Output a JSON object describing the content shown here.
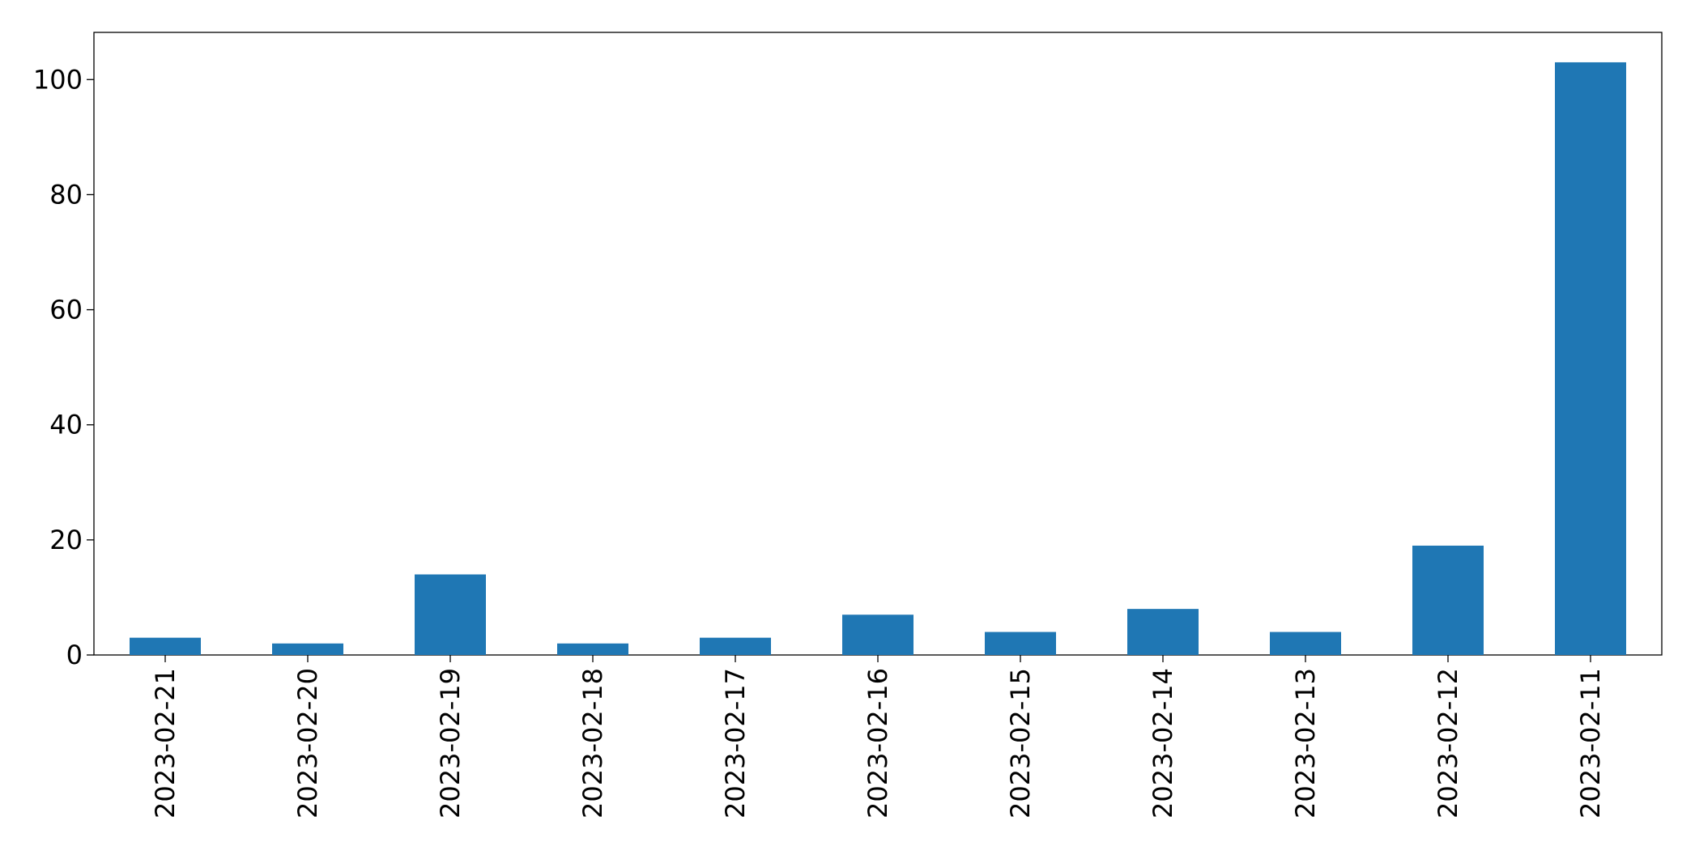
{
  "chart_data": {
    "type": "bar",
    "categories": [
      "2023-02-21",
      "2023-02-20",
      "2023-02-19",
      "2023-02-18",
      "2023-02-17",
      "2023-02-16",
      "2023-02-15",
      "2023-02-14",
      "2023-02-13",
      "2023-02-12",
      "2023-02-11"
    ],
    "values": [
      3,
      2,
      14,
      2,
      3,
      7,
      4,
      8,
      4,
      19,
      103
    ],
    "color": "#1f77b4",
    "ylim": [
      0,
      108.2
    ],
    "yticks": [
      0,
      20,
      40,
      60,
      80,
      100
    ],
    "grid": false
  }
}
